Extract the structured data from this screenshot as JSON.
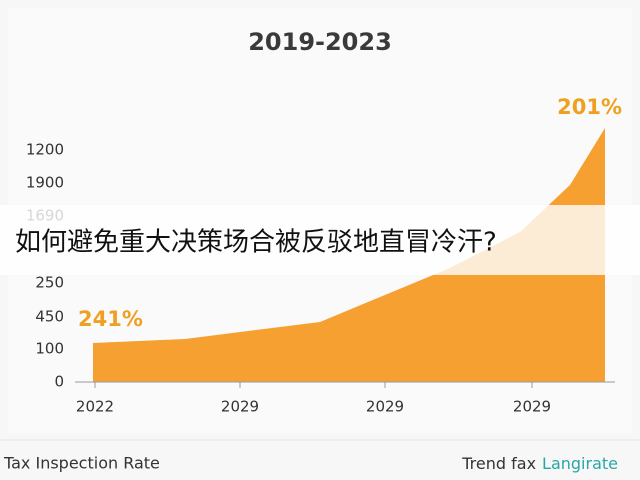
{
  "title": "2019-2023",
  "y_axis_labels": [
    "1200",
    "1900",
    "1690",
    "250",
    "450",
    "100",
    "0"
  ],
  "x_axis_labels": [
    "2022",
    "2029",
    "2029",
    "2029"
  ],
  "annotations": [
    "241%",
    "201%"
  ],
  "overlay_caption": "如何避免重大决策场合被反驳地直冒冷汗?",
  "footer": {
    "left": "Tax Inspection Rate",
    "right_prefix": "Trend fax",
    "right_highlight": "Langirate"
  }
}
